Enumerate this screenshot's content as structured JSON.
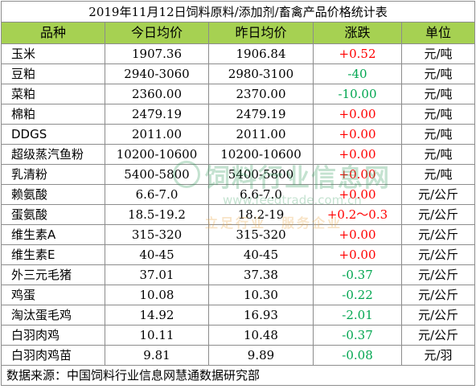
{
  "title": "2019年11月12日饲料原料/添加剂/畜禽产品价格统计表",
  "headers": {
    "name": "品种",
    "today": "今日均价",
    "yesterday": "昨日均价",
    "change": "涨跌",
    "unit": "单位"
  },
  "rows": [
    {
      "name": "玉米",
      "today": "1907.36",
      "yesterday": "1906.84",
      "change": "+0.52",
      "unit": "元/吨",
      "dir": "up"
    },
    {
      "name": "豆粕",
      "today": "2940-3060",
      "yesterday": "2980-3100",
      "change": "-40",
      "unit": "元/吨",
      "dir": "down"
    },
    {
      "name": "菜粕",
      "today": "2360.00",
      "yesterday": "2370.00",
      "change": "-10.00",
      "unit": "元/吨",
      "dir": "down"
    },
    {
      "name": "棉粕",
      "today": "2479.19",
      "yesterday": "2479.19",
      "change": "+0.00",
      "unit": "元/吨",
      "dir": "up"
    },
    {
      "name": "DDGS",
      "today": "2011.00",
      "yesterday": "2011.00",
      "change": "+0.00",
      "unit": "元/吨",
      "dir": "up"
    },
    {
      "name": "超级蒸汽鱼粉",
      "today": "10200-10600",
      "yesterday": "10200-10600",
      "change": "+0.00",
      "unit": "元/吨",
      "dir": "up"
    },
    {
      "name": "乳清粉",
      "today": "5400-5800",
      "yesterday": "5400-5800",
      "change": "+0.00",
      "unit": "元/吨",
      "dir": "up"
    },
    {
      "name": "赖氨酸",
      "today": "6.6-7.0",
      "yesterday": "6.6-7.0",
      "change": "+0.00",
      "unit": "元/公斤",
      "dir": "up"
    },
    {
      "name": "蛋氨酸",
      "today": "18.5-19.2",
      "yesterday": "18.2-19",
      "change": "+0.2～0.3",
      "unit": "元/公斤",
      "dir": "up"
    },
    {
      "name": "维生素A",
      "today": "315-320",
      "yesterday": "315-320",
      "change": "+0.00",
      "unit": "元/公斤",
      "dir": "up"
    },
    {
      "name": "维生素E",
      "today": "40-45",
      "yesterday": "40-45",
      "change": "+0.00",
      "unit": "元/公斤",
      "dir": "up"
    },
    {
      "name": "外三元毛猪",
      "today": "37.01",
      "yesterday": "37.38",
      "change": "-0.37",
      "unit": "元/公斤",
      "dir": "down"
    },
    {
      "name": "鸡蛋",
      "today": "10.08",
      "yesterday": "10.30",
      "change": "-0.22",
      "unit": "元/公斤",
      "dir": "down"
    },
    {
      "name": "淘汰蛋毛鸡",
      "today": "14.92",
      "yesterday": "16.93",
      "change": "-2.01",
      "unit": "元/公斤",
      "dir": "down"
    },
    {
      "name": "白羽肉鸡",
      "today": "10.11",
      "yesterday": "10.48",
      "change": "-0.37",
      "unit": "元/公斤",
      "dir": "down"
    },
    {
      "name": "白羽肉鸡苗",
      "today": "9.81",
      "yesterday": "9.89",
      "change": "-0.08",
      "unit": "元/羽",
      "dir": "down"
    }
  ],
  "source": "数据来源：中国饲料行业信息网慧通数据研究部",
  "watermark": {
    "main": "饲料行业信息网",
    "url": "www.feedtrade.com.cn",
    "slogan": "立足行业　服务企业"
  },
  "colors": {
    "header_bg": "#a6d152",
    "up": "#ff0000",
    "down": "#00a650"
  }
}
